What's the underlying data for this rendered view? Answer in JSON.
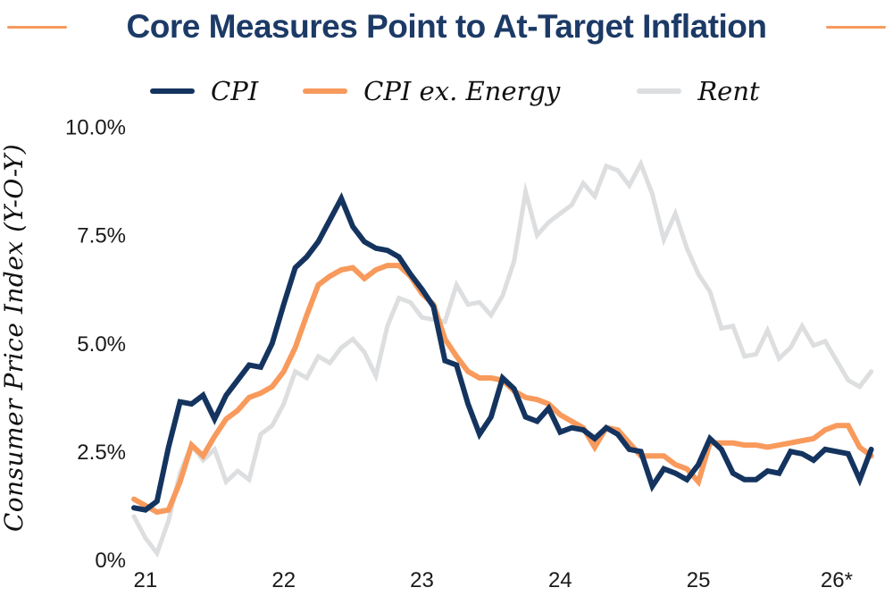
{
  "title": "Core Measures Point to At-Target Inflation",
  "colors": {
    "title_navy": "#1c3a66",
    "line_navy": "#14345f",
    "line_orange": "#f89a5c",
    "line_gray": "#dcdedf",
    "axis_text": "#1a1a1a",
    "accent_rule": "#f89a5c"
  },
  "legend": [
    {
      "label": "CPI",
      "color": "#14345f"
    },
    {
      "label": "CPI ex. Energy",
      "color": "#f89a5c"
    },
    {
      "label": "Rent",
      "color": "#dcdedf"
    }
  ],
  "y_axis": {
    "title": "Consumer Price Index (Y-O-Y)",
    "ticks": [
      {
        "value": 0,
        "label": "0%"
      },
      {
        "value": 2.5,
        "label": "2.5%"
      },
      {
        "value": 5,
        "label": "5.0%"
      },
      {
        "value": 7.5,
        "label": "7.5%"
      },
      {
        "value": 10,
        "label": "10.0%"
      }
    ]
  },
  "x_axis": {
    "ticks": [
      {
        "label": "21"
      },
      {
        "label": "22"
      },
      {
        "label": "23"
      },
      {
        "label": "24"
      },
      {
        "label": "25"
      },
      {
        "label": "26*"
      }
    ]
  },
  "chart_data": {
    "type": "line",
    "title": "Core Measures Point to At-Target Inflation",
    "ylabel": "Consumer Price Index (Y-O-Y)",
    "ylim": [
      0,
      10
    ],
    "grid": false,
    "legend_position": "top",
    "x_unit": "monthly points beginning Dec 2020, one month before the '21' tick; tick marks are at January of each year; 26* denotes forecast",
    "x_tick_labels": [
      "21",
      "22",
      "23",
      "24",
      "25",
      "26*"
    ],
    "series": [
      {
        "name": "CPI",
        "color": "#14345f",
        "stroke_width": 6,
        "values": [
          1.2,
          1.15,
          1.35,
          2.6,
          3.65,
          3.6,
          3.8,
          3.25,
          3.8,
          4.15,
          4.5,
          4.45,
          5.0,
          5.9,
          6.75,
          7.0,
          7.35,
          7.85,
          8.35,
          7.7,
          7.35,
          7.2,
          7.15,
          7.0,
          6.6,
          6.25,
          5.85,
          4.6,
          4.5,
          3.6,
          2.9,
          3.3,
          4.2,
          3.95,
          3.3,
          3.2,
          3.5,
          2.95,
          3.05,
          3.0,
          2.8,
          3.05,
          2.9,
          2.55,
          2.5,
          1.7,
          2.1,
          2.0,
          1.85,
          2.2,
          2.8,
          2.55,
          2.0,
          1.85,
          1.85,
          2.05,
          2.0,
          2.5,
          2.45,
          2.3,
          2.55,
          2.5,
          2.45,
          1.85,
          2.55
        ]
      },
      {
        "name": "CPI ex. Energy",
        "color": "#f89a5c",
        "stroke_width": 6,
        "values": [
          1.4,
          1.25,
          1.1,
          1.15,
          1.8,
          2.65,
          2.4,
          2.85,
          3.25,
          3.45,
          3.75,
          3.85,
          4.0,
          4.35,
          4.9,
          5.65,
          6.35,
          6.55,
          6.7,
          6.75,
          6.5,
          6.7,
          6.8,
          6.8,
          6.55,
          6.15,
          5.9,
          5.1,
          4.7,
          4.35,
          4.2,
          4.2,
          4.15,
          3.9,
          3.75,
          3.7,
          3.6,
          3.35,
          3.2,
          3.05,
          2.6,
          3.05,
          3.0,
          2.7,
          2.4,
          2.4,
          2.4,
          2.2,
          2.1,
          1.8,
          2.7,
          2.7,
          2.7,
          2.65,
          2.65,
          2.6,
          2.65,
          2.7,
          2.75,
          2.8,
          3.0,
          3.1,
          3.1,
          2.6,
          2.4
        ]
      },
      {
        "name": "Rent",
        "color": "#dcdedf",
        "stroke_width": 5,
        "values": [
          1.0,
          0.5,
          0.15,
          0.9,
          2.0,
          2.65,
          2.3,
          2.55,
          1.8,
          2.05,
          1.85,
          2.9,
          3.1,
          3.6,
          4.35,
          4.2,
          4.7,
          4.55,
          4.9,
          5.1,
          4.8,
          4.25,
          5.4,
          6.05,
          5.95,
          5.6,
          5.55,
          5.5,
          6.35,
          5.9,
          5.95,
          5.65,
          6.1,
          6.9,
          8.5,
          7.5,
          7.8,
          8.0,
          8.2,
          8.7,
          8.4,
          9.1,
          9.0,
          8.65,
          9.15,
          8.45,
          7.4,
          8.0,
          7.2,
          6.6,
          6.2,
          5.35,
          5.4,
          4.7,
          4.75,
          5.3,
          4.65,
          4.9,
          5.4,
          4.95,
          5.05,
          4.6,
          4.15,
          4.0,
          4.35
        ]
      }
    ]
  }
}
